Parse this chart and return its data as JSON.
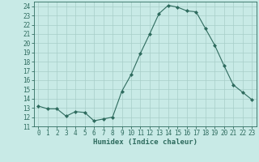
{
  "x": [
    0,
    1,
    2,
    3,
    4,
    5,
    6,
    7,
    8,
    9,
    10,
    11,
    12,
    13,
    14,
    15,
    16,
    17,
    18,
    19,
    20,
    21,
    22,
    23
  ],
  "y": [
    13.2,
    12.9,
    12.9,
    12.1,
    12.6,
    12.5,
    11.6,
    11.8,
    12.0,
    14.8,
    16.6,
    18.9,
    21.0,
    23.2,
    24.1,
    23.9,
    23.5,
    23.4,
    21.6,
    19.8,
    17.6,
    15.5,
    14.7,
    13.9
  ],
  "line_color": "#2e6b5e",
  "marker": "D",
  "marker_size": 2.0,
  "bg_color": "#c8eae6",
  "grid_color": "#a8cec8",
  "xlabel": "Humidex (Indice chaleur)",
  "xlim": [
    -0.5,
    23.5
  ],
  "ylim": [
    11,
    24.5
  ],
  "yticks": [
    11,
    12,
    13,
    14,
    15,
    16,
    17,
    18,
    19,
    20,
    21,
    22,
    23,
    24
  ],
  "xticks": [
    0,
    1,
    2,
    3,
    4,
    5,
    6,
    7,
    8,
    9,
    10,
    11,
    12,
    13,
    14,
    15,
    16,
    17,
    18,
    19,
    20,
    21,
    22,
    23
  ],
  "tick_fontsize": 5.5,
  "label_fontsize": 6.5,
  "label_color": "#2e6b5e",
  "axis_color": "#2e6b5e"
}
